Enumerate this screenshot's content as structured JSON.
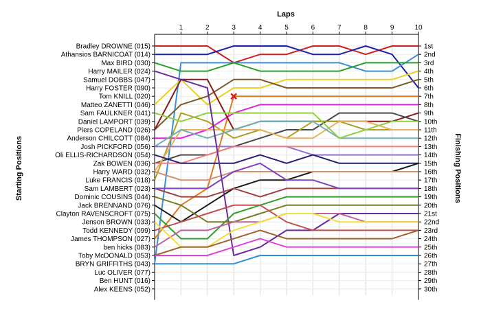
{
  "chart_data": {
    "type": "line",
    "title": "",
    "xlabel": "Laps",
    "ylabel_left": "Starting Positions",
    "ylabel_right": "Finishing Positions",
    "x": [
      0,
      1,
      2,
      3,
      4,
      5,
      6,
      7,
      8,
      9,
      10
    ],
    "x_tick_labels": [
      "1",
      "2",
      "3",
      "4",
      "5",
      "6",
      "7",
      "8",
      "9",
      "10"
    ],
    "ylim": [
      1,
      30
    ],
    "grid": true,
    "left_labels": [
      "Bradley DROWNE (015)",
      "Athansios BARNICOAT (014)",
      "Max BIRD (030)",
      "Harry MAILER (024)",
      "Samuel DOBBS (047)",
      "Harry FOSTER (090)",
      "Tom KNILL (020)",
      "Matteo ZANETTI (046)",
      "Sam FAULKNER (041)",
      "Daniel LAMPORT (039)",
      "Piers COPELAND (026)",
      "Anderson CHILCOTT (084)",
      "Josh PICKFORD (056)",
      "Oli ELLIS-RICHARDSON (054)",
      "Zak BOWEN (036)",
      "Harry WARD (032)",
      "Luke FRANCIS (018)",
      "Sam LAMBERT (023)",
      "Dominic COUSINS (044)",
      "Jack BRENNAND (076)",
      "Clayton RAVENSCROFT (075)",
      "Jenson BROWN (033)",
      "Todd KENNEDY (099)",
      "James THOMPSON (027)",
      "ben hicks (083)",
      "Toby McDONALD (053)",
      "BRYN GRIFFITHS (043)",
      "Luc OLIVER (077)",
      "Ben HUNT (016)",
      "Alex KEENS (052)"
    ],
    "right_labels": [
      "1st",
      "2nd",
      "3rd",
      "4th",
      "5th",
      "6th",
      "7th",
      "8th",
      "9th",
      "10th",
      "11th",
      "12th",
      "13th",
      "14th",
      "15th",
      "16th",
      "17th",
      "18th",
      "19th",
      "20th",
      "21st",
      "22nd",
      "23rd",
      "24th",
      "25th",
      "26th",
      "27th",
      "28th",
      "29th",
      "30th"
    ],
    "series": [
      {
        "color": "#cc1f1f",
        "positions": [
          1,
          1,
          1,
          3,
          2,
          2,
          1,
          1,
          2,
          1,
          1
        ]
      },
      {
        "color": "#1f1fa8",
        "positions": [
          2,
          2,
          2,
          1,
          1,
          1,
          2,
          2,
          1,
          2,
          6
        ]
      },
      {
        "color": "#3a8fd6",
        "positions": [
          27,
          3,
          3,
          3,
          3,
          3,
          3,
          3,
          4,
          4,
          2
        ]
      },
      {
        "color": "#2aa02a",
        "positions": [
          3,
          4,
          4,
          3,
          4,
          4,
          4,
          4,
          3,
          3,
          3
        ]
      },
      {
        "color": "#e6d21f",
        "positions": [
          8,
          5,
          8,
          6,
          6,
          5,
          5,
          5,
          5,
          5,
          4
        ]
      },
      {
        "color": "#7a5a2a",
        "positions": [
          11,
          8,
          7,
          5,
          5,
          6,
          6,
          6,
          6,
          6,
          5
        ]
      },
      {
        "color": "#e07a1f",
        "positions": [
          24,
          20,
          18,
          7,
          7,
          7,
          7,
          7,
          7,
          7,
          7
        ]
      },
      {
        "color": "#e021e0",
        "positions": [
          12,
          12,
          11,
          9,
          8,
          8,
          8,
          8,
          8,
          8,
          8
        ]
      },
      {
        "color": "#8b1a1a",
        "positions": [
          11,
          5,
          5,
          11,
          10,
          10,
          10,
          10,
          10,
          10,
          9
        ]
      },
      {
        "color": "#4a4a4a",
        "positions": [
          15,
          14,
          14,
          13,
          12,
          11,
          11,
          9,
          9,
          9,
          10
        ]
      },
      {
        "color": "#b0a020",
        "positions": [
          17,
          9,
          10,
          12,
          11,
          12,
          10,
          10,
          11,
          11,
          11
        ]
      },
      {
        "color": "#e8b060",
        "positions": [
          16,
          11,
          11,
          11,
          11,
          12,
          12,
          10,
          10,
          11,
          11
        ]
      },
      {
        "color": "#70b0b0",
        "positions": [
          13,
          11,
          12,
          11,
          10,
          10,
          10,
          12,
          12,
          12,
          12
        ]
      },
      {
        "color": "#90d040",
        "positions": [
          9,
          10,
          9,
          9,
          9,
          9,
          9,
          12,
          11,
          10,
          10
        ]
      },
      {
        "color": "#9070d0",
        "positions": [
          13,
          13,
          13,
          13,
          13,
          13,
          14,
          14,
          14,
          14,
          14
        ]
      },
      {
        "color": "#f08080",
        "positions": [
          15,
          15,
          14,
          13,
          13,
          13,
          13,
          13,
          13,
          13,
          13
        ]
      },
      {
        "color": "#202070",
        "positions": [
          14,
          15,
          15,
          15,
          14,
          15,
          14,
          15,
          15,
          15,
          15
        ]
      },
      {
        "color": "#1a1a1a",
        "positions": [
          20,
          22,
          20,
          18,
          17,
          17,
          16,
          16,
          16,
          16,
          15
        ]
      },
      {
        "color": "#d09070",
        "positions": [
          16,
          17,
          17,
          16,
          16,
          16,
          16,
          16,
          16,
          16,
          16
        ]
      },
      {
        "color": "#6a2a9a",
        "positions": [
          4,
          5,
          6,
          26,
          25,
          23,
          23,
          21,
          21,
          21,
          21
        ]
      },
      {
        "color": "#a04040",
        "positions": [
          18,
          19,
          19,
          18,
          19,
          18,
          18,
          18,
          18,
          18,
          18
        ]
      },
      {
        "color": "#30a030",
        "positions": [
          21,
          24,
          24,
          21,
          20,
          19,
          19,
          19,
          19,
          19,
          19
        ]
      },
      {
        "color": "#7a7a20",
        "positions": [
          19,
          20,
          22,
          22,
          21,
          20,
          20,
          20,
          20,
          20,
          20
        ]
      },
      {
        "color": "#c05050",
        "positions": [
          23,
          22,
          21,
          20,
          20,
          22,
          23,
          23,
          23,
          23,
          23
        ]
      },
      {
        "color": "#c060a0",
        "positions": [
          25,
          23,
          23,
          22,
          22,
          21,
          21,
          21,
          22,
          22,
          22
        ]
      },
      {
        "color": "#f0e040",
        "positions": [
          22,
          25,
          25,
          23,
          22,
          21,
          21,
          22,
          22,
          22,
          22
        ]
      },
      {
        "color": "#a06030",
        "positions": [
          26,
          25,
          25,
          24,
          23,
          24,
          24,
          24,
          24,
          24,
          23
        ]
      },
      {
        "color": "#8040c0",
        "positions": [
          18,
          18,
          18,
          16,
          15,
          17,
          17,
          18,
          18,
          18,
          18
        ]
      },
      {
        "color": "#e040e0",
        "positions": [
          26,
          26,
          26,
          25,
          24,
          25,
          25,
          25,
          25,
          25,
          25
        ]
      },
      {
        "color": "#2f8fd8",
        "positions": [
          27,
          27,
          27,
          27,
          26,
          26,
          26,
          26,
          26,
          26,
          26
        ]
      }
    ]
  }
}
